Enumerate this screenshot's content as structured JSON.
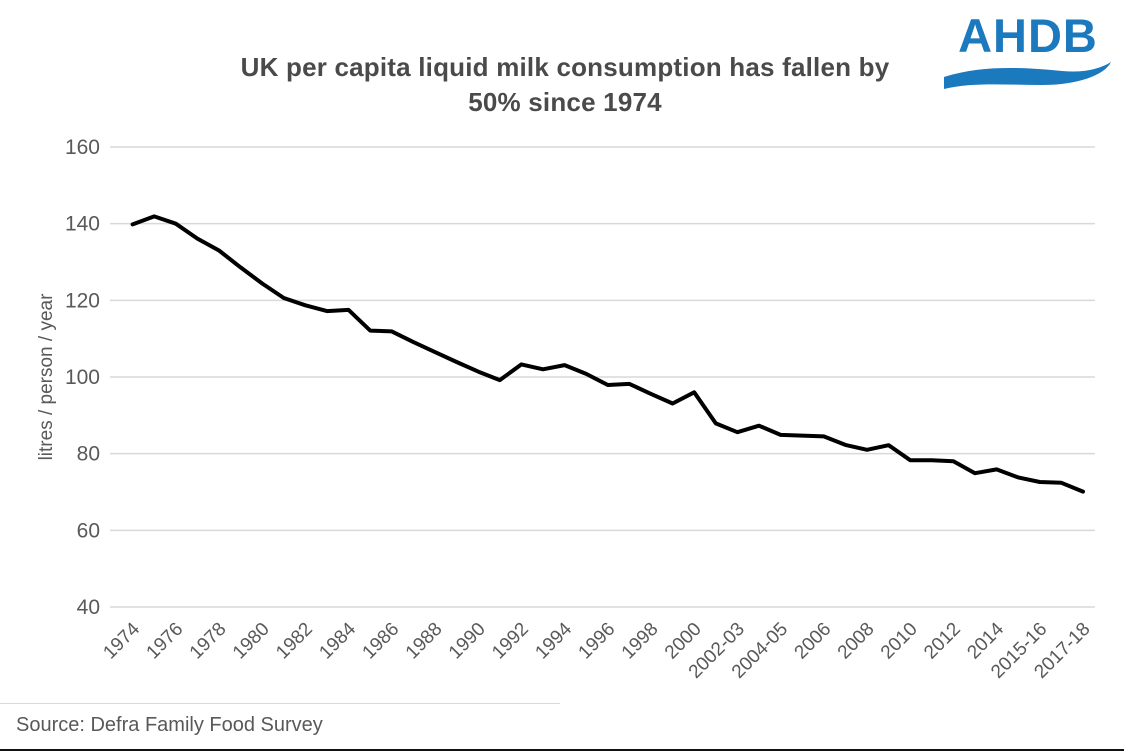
{
  "header": {
    "title_line1": "UK per capita liquid milk consumption has fallen by",
    "title_line2": "50% since 1974"
  },
  "logo": {
    "text": "AHDB",
    "color": "#1b79be",
    "icon": "wave-swoosh-icon"
  },
  "source": {
    "text": "Source: Defra Family  Food Survey"
  },
  "chart_data": {
    "type": "line",
    "title": "UK per capita liquid milk consumption has fallen by 50% since 1974",
    "xlabel": "",
    "ylabel": "litres / person / year",
    "ylim": [
      40,
      160
    ],
    "yticks": [
      160,
      140,
      120,
      100,
      80,
      60,
      40
    ],
    "grid": "horizontal",
    "legend": "none",
    "line_color": "#000000",
    "line_width": 4,
    "gridline_color": "#d9d9d9",
    "tick_label_color": "#595959",
    "categories": [
      "1974",
      "1975",
      "1976",
      "1977",
      "1978",
      "1979",
      "1980",
      "1981",
      "1982",
      "1983",
      "1984",
      "1985",
      "1986",
      "1987",
      "1988",
      "1989",
      "1990",
      "1991",
      "1992",
      "1993",
      "1994",
      "1995",
      "1996",
      "1997",
      "1998",
      "1999",
      "2000",
      "2001-02",
      "2002-03",
      "2003-04",
      "2004-05",
      "2005-06",
      "2006",
      "2007",
      "2008",
      "2009",
      "2010",
      "2011",
      "2012",
      "2013",
      "2014",
      "2014-15",
      "2015-16",
      "2016-17",
      "2017-18"
    ],
    "values": [
      139.8,
      141.9,
      140.0,
      136.1,
      133.0,
      128.6,
      124.4,
      120.6,
      118.7,
      117.2,
      117.5,
      112.1,
      111.9,
      109.1,
      106.5,
      103.9,
      101.4,
      99.2,
      103.3,
      102.0,
      103.1,
      100.8,
      97.9,
      98.2,
      95.6,
      93.1,
      96.0,
      87.9,
      85.6,
      87.3,
      84.9,
      84.7,
      84.5,
      82.3,
      81.0,
      82.2,
      78.3,
      78.3,
      78.0,
      74.9,
      75.9,
      73.8,
      72.6,
      72.4,
      70.1
    ],
    "x_tick_labels": [
      "1974",
      "1976",
      "1978",
      "1980",
      "1982",
      "1984",
      "1986",
      "1988",
      "1990",
      "1992",
      "1994",
      "1996",
      "1998",
      "2000",
      "2002-03",
      "2004-05",
      "2006",
      "2008",
      "2010",
      "2012",
      "2014",
      "2015-16",
      "2017-18"
    ],
    "x_tick_every": 2
  }
}
